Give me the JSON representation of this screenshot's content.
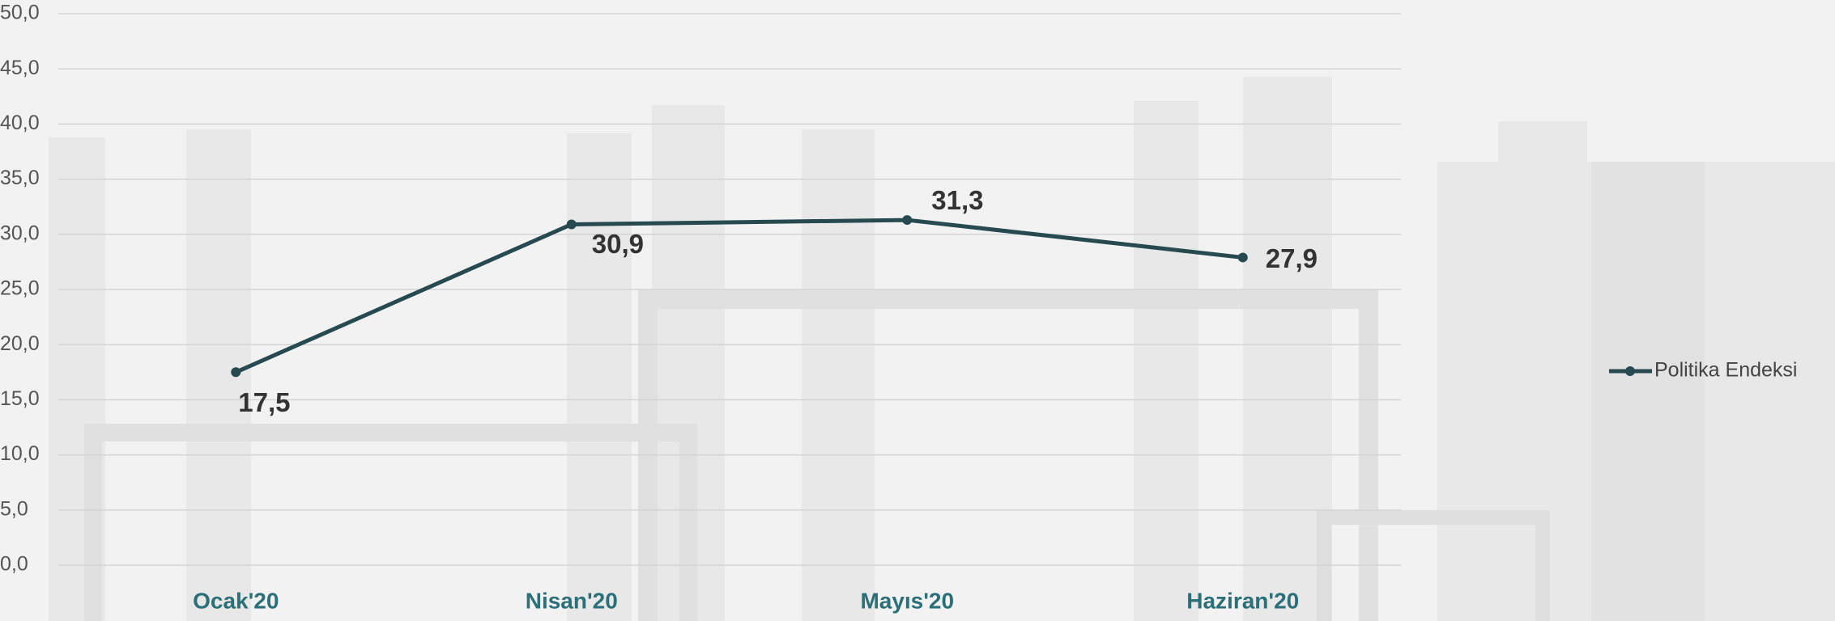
{
  "chart_data": {
    "type": "line",
    "categories": [
      "Ocak'20",
      "Nisan'20",
      "Mayıs'20",
      "Haziran'20"
    ],
    "series": [
      {
        "name": "Politika Endeksi",
        "color": "#264a50",
        "values": [
          17.5,
          30.9,
          31.3,
          27.9
        ],
        "value_labels": [
          "17,5",
          "30,9",
          "31,3",
          "27,9"
        ]
      }
    ],
    "ylim": [
      0,
      50
    ],
    "yticks": [
      {
        "value": 0,
        "label": "0,0"
      },
      {
        "value": 5,
        "label": "5,0"
      },
      {
        "value": 10,
        "label": "10,0"
      },
      {
        "value": 15,
        "label": "15,0"
      },
      {
        "value": 20,
        "label": "20,0"
      },
      {
        "value": 25,
        "label": "25,0"
      },
      {
        "value": 30,
        "label": "30,0"
      },
      {
        "value": 35,
        "label": "35,0"
      },
      {
        "value": 40,
        "label": "40,0"
      },
      {
        "value": 45,
        "label": "45,0"
      },
      {
        "value": 50,
        "label": "50,0"
      }
    ],
    "grid": true,
    "legend": "right"
  }
}
